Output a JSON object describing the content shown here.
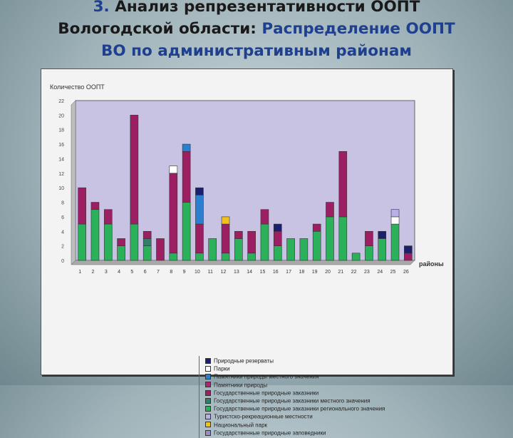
{
  "slide": {
    "title_prefix": "3.",
    "title_line1": " Анализ репрезентативности ООПТ",
    "title_line2a": "Вологодской области: ",
    "title_line2b": "Распределение ООПТ",
    "title_line3": "ВО по административным районам"
  },
  "chart_data": {
    "type": "bar",
    "stacked": true,
    "ylabel": "Количество ООПТ",
    "xlabel": "районы",
    "ylim": [
      0,
      22
    ],
    "yticks": [
      0,
      2,
      4,
      6,
      8,
      10,
      12,
      14,
      16,
      18,
      20,
      22
    ],
    "grid": false,
    "categories": [
      "1",
      "2",
      "3",
      "4",
      "5",
      "6",
      "7",
      "8",
      "9",
      "10",
      "11",
      "12",
      "13",
      "14",
      "15",
      "16",
      "17",
      "18",
      "19",
      "20",
      "21",
      "22",
      "23",
      "24",
      "25",
      "26"
    ],
    "legend_position": "bottom",
    "series": [
      {
        "name": "Государственные природные заказники регионального значения",
        "color": "#2bb15a",
        "values": [
          5,
          7,
          5,
          2,
          5,
          2,
          0,
          1,
          8,
          1,
          3,
          1,
          3,
          1,
          5,
          2,
          3,
          3,
          4,
          6,
          6,
          1,
          2,
          3,
          5,
          0
        ]
      },
      {
        "name": "Государственные природные заказники местного значения",
        "color": "#2f7f6a",
        "values": [
          0,
          0,
          0,
          0,
          0,
          1,
          0,
          0,
          0,
          0,
          0,
          0,
          0,
          0,
          0,
          0,
          0,
          0,
          0,
          0,
          0,
          0,
          0,
          0,
          0,
          0
        ]
      },
      {
        "name": "Государственные природные заказники",
        "color": "#9c1f63",
        "values": [
          5,
          1,
          2,
          1,
          15,
          1,
          3,
          11,
          7,
          4,
          0,
          4,
          1,
          3,
          2,
          2,
          0,
          0,
          1,
          2,
          9,
          0,
          2,
          0,
          0,
          1
        ]
      },
      {
        "name": "Памятники природы",
        "color": "#b0256e",
        "values": [
          0,
          0,
          0,
          0,
          0,
          0,
          0,
          0,
          0,
          0,
          0,
          0,
          0,
          0,
          0,
          0,
          0,
          0,
          0,
          0,
          0,
          0,
          0,
          0,
          0,
          0
        ]
      },
      {
        "name": "Памятники природы местного значения",
        "color": "#2a7fd0",
        "values": [
          0,
          0,
          0,
          0,
          0,
          0,
          0,
          0,
          1,
          4,
          0,
          0,
          0,
          0,
          0,
          0,
          0,
          0,
          0,
          0,
          0,
          0,
          0,
          0,
          0,
          0
        ]
      },
      {
        "name": "Парки",
        "color": "#ffffff",
        "values": [
          0,
          0,
          0,
          0,
          0,
          0,
          0,
          1,
          0,
          0,
          0,
          0,
          0,
          0,
          0,
          0,
          0,
          0,
          0,
          0,
          0,
          0,
          0,
          0,
          1,
          0
        ]
      },
      {
        "name": "Природные резерваты",
        "color": "#1a1f6e",
        "values": [
          0,
          0,
          0,
          0,
          0,
          0,
          0,
          0,
          0,
          1,
          0,
          0,
          0,
          0,
          0,
          1,
          0,
          0,
          0,
          0,
          0,
          0,
          0,
          1,
          0,
          1
        ]
      },
      {
        "name": "Туристско-рекреационные местности",
        "color": "#b9b0e6",
        "values": [
          0,
          0,
          0,
          0,
          0,
          0,
          0,
          0,
          0,
          0,
          0,
          0,
          0,
          0,
          0,
          0,
          0,
          0,
          0,
          0,
          0,
          0,
          0,
          0,
          1,
          0
        ]
      },
      {
        "name": "Национальный парк",
        "color": "#f2c21c",
        "values": [
          0,
          0,
          0,
          0,
          0,
          0,
          0,
          0,
          0,
          0,
          0,
          1,
          0,
          0,
          0,
          0,
          0,
          0,
          0,
          0,
          0,
          0,
          0,
          0,
          0,
          0
        ]
      },
      {
        "name": "Государственные природные заповедники",
        "color": "#9a8ec2",
        "values": [
          0,
          0,
          0,
          0,
          0,
          0,
          0,
          0,
          0,
          0,
          0,
          0,
          0,
          0,
          0,
          0,
          0,
          0,
          0,
          0,
          0,
          0,
          0,
          0,
          0,
          0
        ]
      }
    ],
    "legend_order": [
      6,
      5,
      4,
      3,
      2,
      1,
      0,
      7,
      8,
      9
    ],
    "colors": {
      "plot_bg": "#c8c3e3",
      "panel_bg": "#f3f3f3"
    }
  }
}
